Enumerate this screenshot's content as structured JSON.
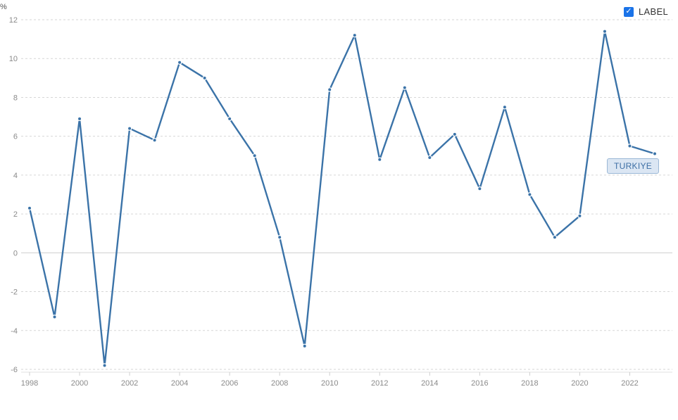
{
  "legend": {
    "label": "LABEL",
    "checked": true
  },
  "series_tag": "TURKIYE",
  "colors": {
    "series": "#3b73a8",
    "checkbox": "#1a73e8"
  },
  "chart_data": {
    "type": "line",
    "ylabel": "%",
    "xlabel": "",
    "ylim": [
      -6,
      12
    ],
    "yticks": [
      -6,
      -4,
      -2,
      0,
      2,
      4,
      6,
      8,
      10,
      12
    ],
    "xlim": [
      1998,
      2023
    ],
    "xticks": [
      1998,
      2000,
      2002,
      2004,
      2006,
      2008,
      2010,
      2012,
      2014,
      2016,
      2018,
      2020,
      2022
    ],
    "grid": true,
    "legend_position": "top-right",
    "x": [
      1998,
      1999,
      2000,
      2001,
      2002,
      2003,
      2004,
      2005,
      2006,
      2007,
      2008,
      2009,
      2010,
      2011,
      2012,
      2013,
      2014,
      2015,
      2016,
      2017,
      2018,
      2019,
      2020,
      2021,
      2022,
      2023
    ],
    "series": [
      {
        "name": "TURKIYE",
        "values": [
          2.3,
          -3.3,
          6.9,
          -5.8,
          6.4,
          5.8,
          9.8,
          9.0,
          6.9,
          5.0,
          0.8,
          -4.8,
          8.4,
          11.2,
          4.8,
          8.5,
          4.9,
          6.1,
          3.3,
          7.5,
          3.0,
          0.8,
          1.9,
          11.4,
          5.5,
          5.1
        ]
      }
    ]
  }
}
